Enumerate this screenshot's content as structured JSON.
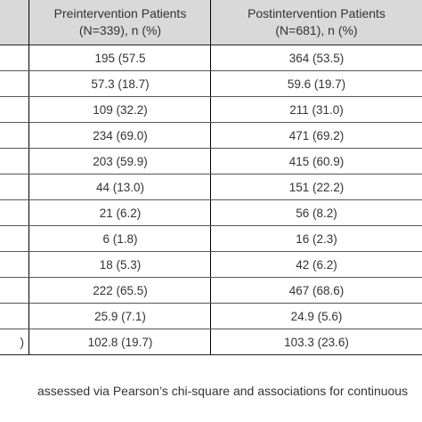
{
  "table": {
    "headers": [
      {
        "line1": "Preintervention Patients",
        "line2": "(N=339), n (%)"
      },
      {
        "line1": "Postintervention Patients",
        "line2": "(N=681), n (%)"
      }
    ],
    "rows": [
      {
        "label": "",
        "pre": "195 (57.5",
        "post": "364 (53.5)"
      },
      {
        "label": "",
        "pre": "57.3 (18.7)",
        "post": "59.6 (19.7)"
      },
      {
        "label": "",
        "pre": "109 (32.2)",
        "post": "211 (31.0)"
      },
      {
        "label": "",
        "pre": "234 (69.0)",
        "post": "471 (69.2)"
      },
      {
        "label": "",
        "pre": "203 (59.9)",
        "post": "415 (60.9)"
      },
      {
        "label": "",
        "pre": "44 (13.0)",
        "post": "151 (22.2)"
      },
      {
        "label": "",
        "pre": "21 (6.2)",
        "post": "56 (8.2)"
      },
      {
        "label": "",
        "pre": "6 (1.8)",
        "post": "16 (2.3)"
      },
      {
        "label": "",
        "pre": "18 (5.3)",
        "post": "42 (6.2)"
      },
      {
        "label": "",
        "pre": "222 (65.5)",
        "post": "467 (68.6)"
      },
      {
        "label": "",
        "pre": "25.9 (7.1)",
        "post": "24.9 (5.6)"
      },
      {
        "label": ")",
        "pre": "102.8 (19.7)",
        "post": "103.3 (23.6)"
      }
    ]
  },
  "footnote": "assessed via Pearson’s chi-square and associations for continuous"
}
